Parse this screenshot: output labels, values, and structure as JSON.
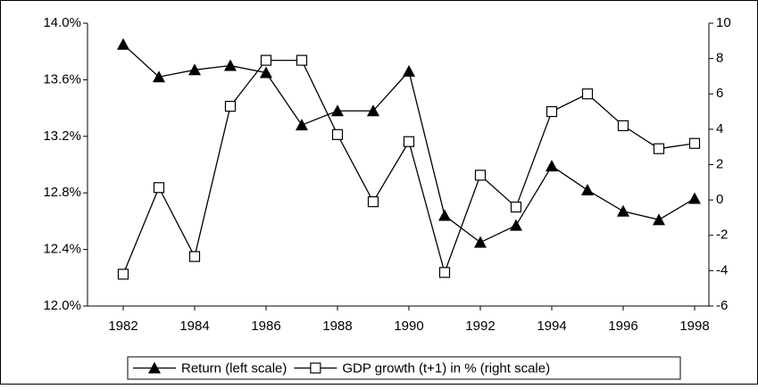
{
  "chart_data": {
    "type": "line",
    "x": [
      1982,
      1983,
      1984,
      1985,
      1986,
      1987,
      1988,
      1989,
      1990,
      1991,
      1992,
      1993,
      1994,
      1995,
      1996,
      1997,
      1998
    ],
    "xlim": [
      1981,
      1998.4
    ],
    "xticks": [
      1982,
      1984,
      1986,
      1988,
      1990,
      1992,
      1994,
      1996,
      1998
    ],
    "ylim": [
      12.0,
      14.0
    ],
    "yticks": [
      {
        "value": 12.0,
        "label": "12.0%"
      },
      {
        "value": 12.4,
        "label": "12.4%"
      },
      {
        "value": 12.8,
        "label": "12.8%"
      },
      {
        "value": 13.2,
        "label": "13.2%"
      },
      {
        "value": 13.6,
        "label": "13.6%"
      },
      {
        "value": 14.0,
        "label": "14.0%"
      }
    ],
    "y2lim": [
      -6,
      10
    ],
    "y2ticks": [
      -6,
      -4,
      -2,
      0,
      2,
      4,
      6,
      8,
      10
    ],
    "legend": "bottom",
    "series": [
      {
        "name": "Return (left scale)",
        "color": "#000000",
        "marker": "triangle",
        "values": [
          13.85,
          13.62,
          13.67,
          13.7,
          13.65,
          13.28,
          13.38,
          13.38,
          13.66,
          12.64,
          12.45,
          12.57,
          12.99,
          12.82,
          12.67,
          12.61,
          12.76
        ]
      },
      {
        "name": "GDP growth (t+1) in % (right scale)",
        "color": "#000000",
        "marker": "square",
        "axis": "y2",
        "values": [
          -4.2,
          0.7,
          -3.2,
          5.3,
          7.9,
          7.9,
          3.7,
          -0.1,
          3.3,
          -4.1,
          1.4,
          -0.4,
          5.0,
          6.0,
          4.2,
          2.9,
          3.2
        ]
      }
    ]
  }
}
